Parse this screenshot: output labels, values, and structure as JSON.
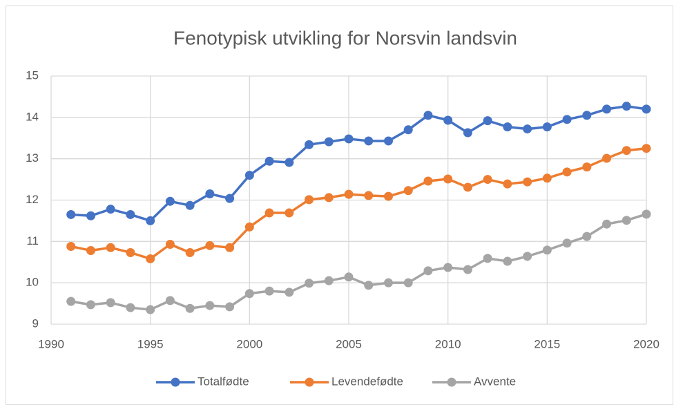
{
  "chart_data": {
    "type": "line",
    "title": "Fenotypisk utvikling for Norsvin landsvin",
    "x": [
      1991,
      1992,
      1993,
      1994,
      1995,
      1996,
      1997,
      1998,
      1999,
      2000,
      2001,
      2002,
      2003,
      2004,
      2005,
      2006,
      2007,
      2008,
      2009,
      2010,
      2011,
      2012,
      2013,
      2014,
      2015,
      2016,
      2017,
      2018,
      2019,
      2020
    ],
    "series": [
      {
        "name": "Totalfødte",
        "color": "#4472c4",
        "values": [
          11.65,
          11.62,
          11.78,
          11.65,
          11.5,
          11.97,
          11.87,
          12.15,
          12.04,
          12.6,
          12.94,
          12.91,
          13.34,
          13.41,
          13.48,
          13.43,
          13.43,
          13.7,
          14.05,
          13.93,
          13.63,
          13.92,
          13.77,
          13.72,
          13.77,
          13.95,
          14.05,
          14.2,
          14.27,
          14.2
        ]
      },
      {
        "name": "Levendefødte",
        "color": "#ed7d31",
        "values": [
          10.88,
          10.78,
          10.85,
          10.73,
          10.58,
          10.93,
          10.73,
          10.9,
          10.85,
          11.35,
          11.69,
          11.69,
          12.01,
          12.06,
          12.14,
          12.11,
          12.09,
          12.23,
          12.46,
          12.51,
          12.31,
          12.5,
          12.39,
          12.44,
          12.53,
          12.68,
          12.8,
          13.01,
          13.2,
          13.25
        ]
      },
      {
        "name": "Avvente",
        "color": "#a5a5a5",
        "values": [
          9.55,
          9.47,
          9.52,
          9.4,
          9.35,
          9.57,
          9.38,
          9.45,
          9.42,
          9.74,
          9.8,
          9.77,
          9.99,
          10.05,
          10.14,
          9.94,
          10.0,
          10.0,
          10.29,
          10.37,
          10.32,
          10.59,
          10.52,
          10.64,
          10.79,
          10.96,
          11.12,
          11.42,
          11.51,
          11.66
        ]
      }
    ],
    "xlim": [
      1990,
      2020
    ],
    "xticks": [
      1990,
      1995,
      2000,
      2005,
      2010,
      2015,
      2020
    ],
    "ylim": [
      9,
      15
    ],
    "yticks": [
      9,
      10,
      11,
      12,
      13,
      14,
      15
    ],
    "grid": true,
    "legend": "bottom"
  }
}
